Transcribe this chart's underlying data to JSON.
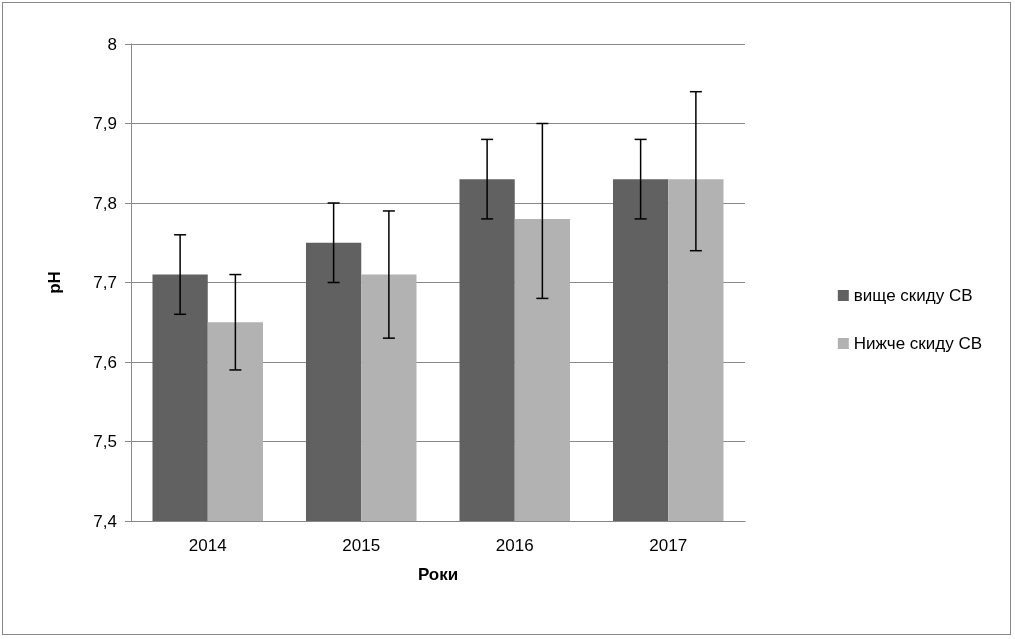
{
  "chart_data": {
    "type": "bar",
    "xlabel": "Роки",
    "ylabel": "pH",
    "categories": [
      "2014",
      "2015",
      "2016",
      "2017"
    ],
    "series": [
      {
        "name": "вище скиду СВ",
        "color": "#616161",
        "values": [
          7.71,
          7.75,
          7.83,
          7.83
        ],
        "errors": [
          [
            7.66,
            7.76
          ],
          [
            7.7,
            7.8
          ],
          [
            7.78,
            7.88
          ],
          [
            7.78,
            7.88
          ]
        ]
      },
      {
        "name": "Нижче скиду СВ",
        "color": "#b2b2b2",
        "values": [
          7.65,
          7.71,
          7.78,
          7.83
        ],
        "errors": [
          [
            7.59,
            7.71
          ],
          [
            7.63,
            7.79
          ],
          [
            7.68,
            7.9
          ],
          [
            7.74,
            7.94
          ]
        ]
      }
    ],
    "ylim": [
      7.4,
      8
    ],
    "yticks": [
      {
        "value": 7.4,
        "label": "7,4"
      },
      {
        "value": 7.5,
        "label": "7,5"
      },
      {
        "value": 7.6,
        "label": "7,6"
      },
      {
        "value": 7.7,
        "label": "7,7"
      },
      {
        "value": 7.8,
        "label": "7,8"
      },
      {
        "value": 7.9,
        "label": "7,9"
      },
      8
    ],
    "grid": "y",
    "legend": "right"
  }
}
